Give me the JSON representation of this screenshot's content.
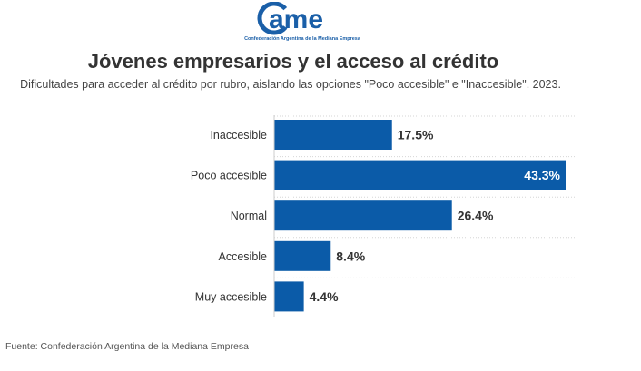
{
  "logo": {
    "wordmark": "came",
    "caption": "Confederación Argentina de la Mediana Empresa"
  },
  "header": {
    "title": "Jóvenes empresarios y el acceso al crédito",
    "subtitle": "Dificultades para acceder al crédito por rubro, aislando las opciones \"Poco accesible\" e \"Inaccesible\". 2023."
  },
  "chart_data": {
    "type": "bar",
    "orientation": "horizontal",
    "title": "Jóvenes empresarios y el acceso al crédito",
    "subtitle": "Dificultades para acceder al crédito por rubro, aislando las opciones \"Poco accesible\" e \"Inaccesible\". 2023.",
    "categories": [
      "Inaccesible",
      "Poco accesible",
      "Normal",
      "Accesible",
      "Muy accesible"
    ],
    "values": [
      17.5,
      43.3,
      26.4,
      8.4,
      4.4
    ],
    "value_labels": [
      "17.5%",
      "43.3%",
      "26.4%",
      "8.4%",
      "4.4%"
    ],
    "xlim": [
      0,
      45
    ],
    "xlabel": "",
    "ylabel": "",
    "unit": "%",
    "grid": false,
    "bar_color": "#0b5ba8"
  },
  "footer": {
    "source": "Fuente: Confederación Argentina de la Mediana Empresa"
  },
  "colors": {
    "bar": "#0b5ba8",
    "brand_blue": "#1a5fa8",
    "title": "#333333",
    "label_inside": "#ffffff",
    "label_outside": "#333333"
  }
}
